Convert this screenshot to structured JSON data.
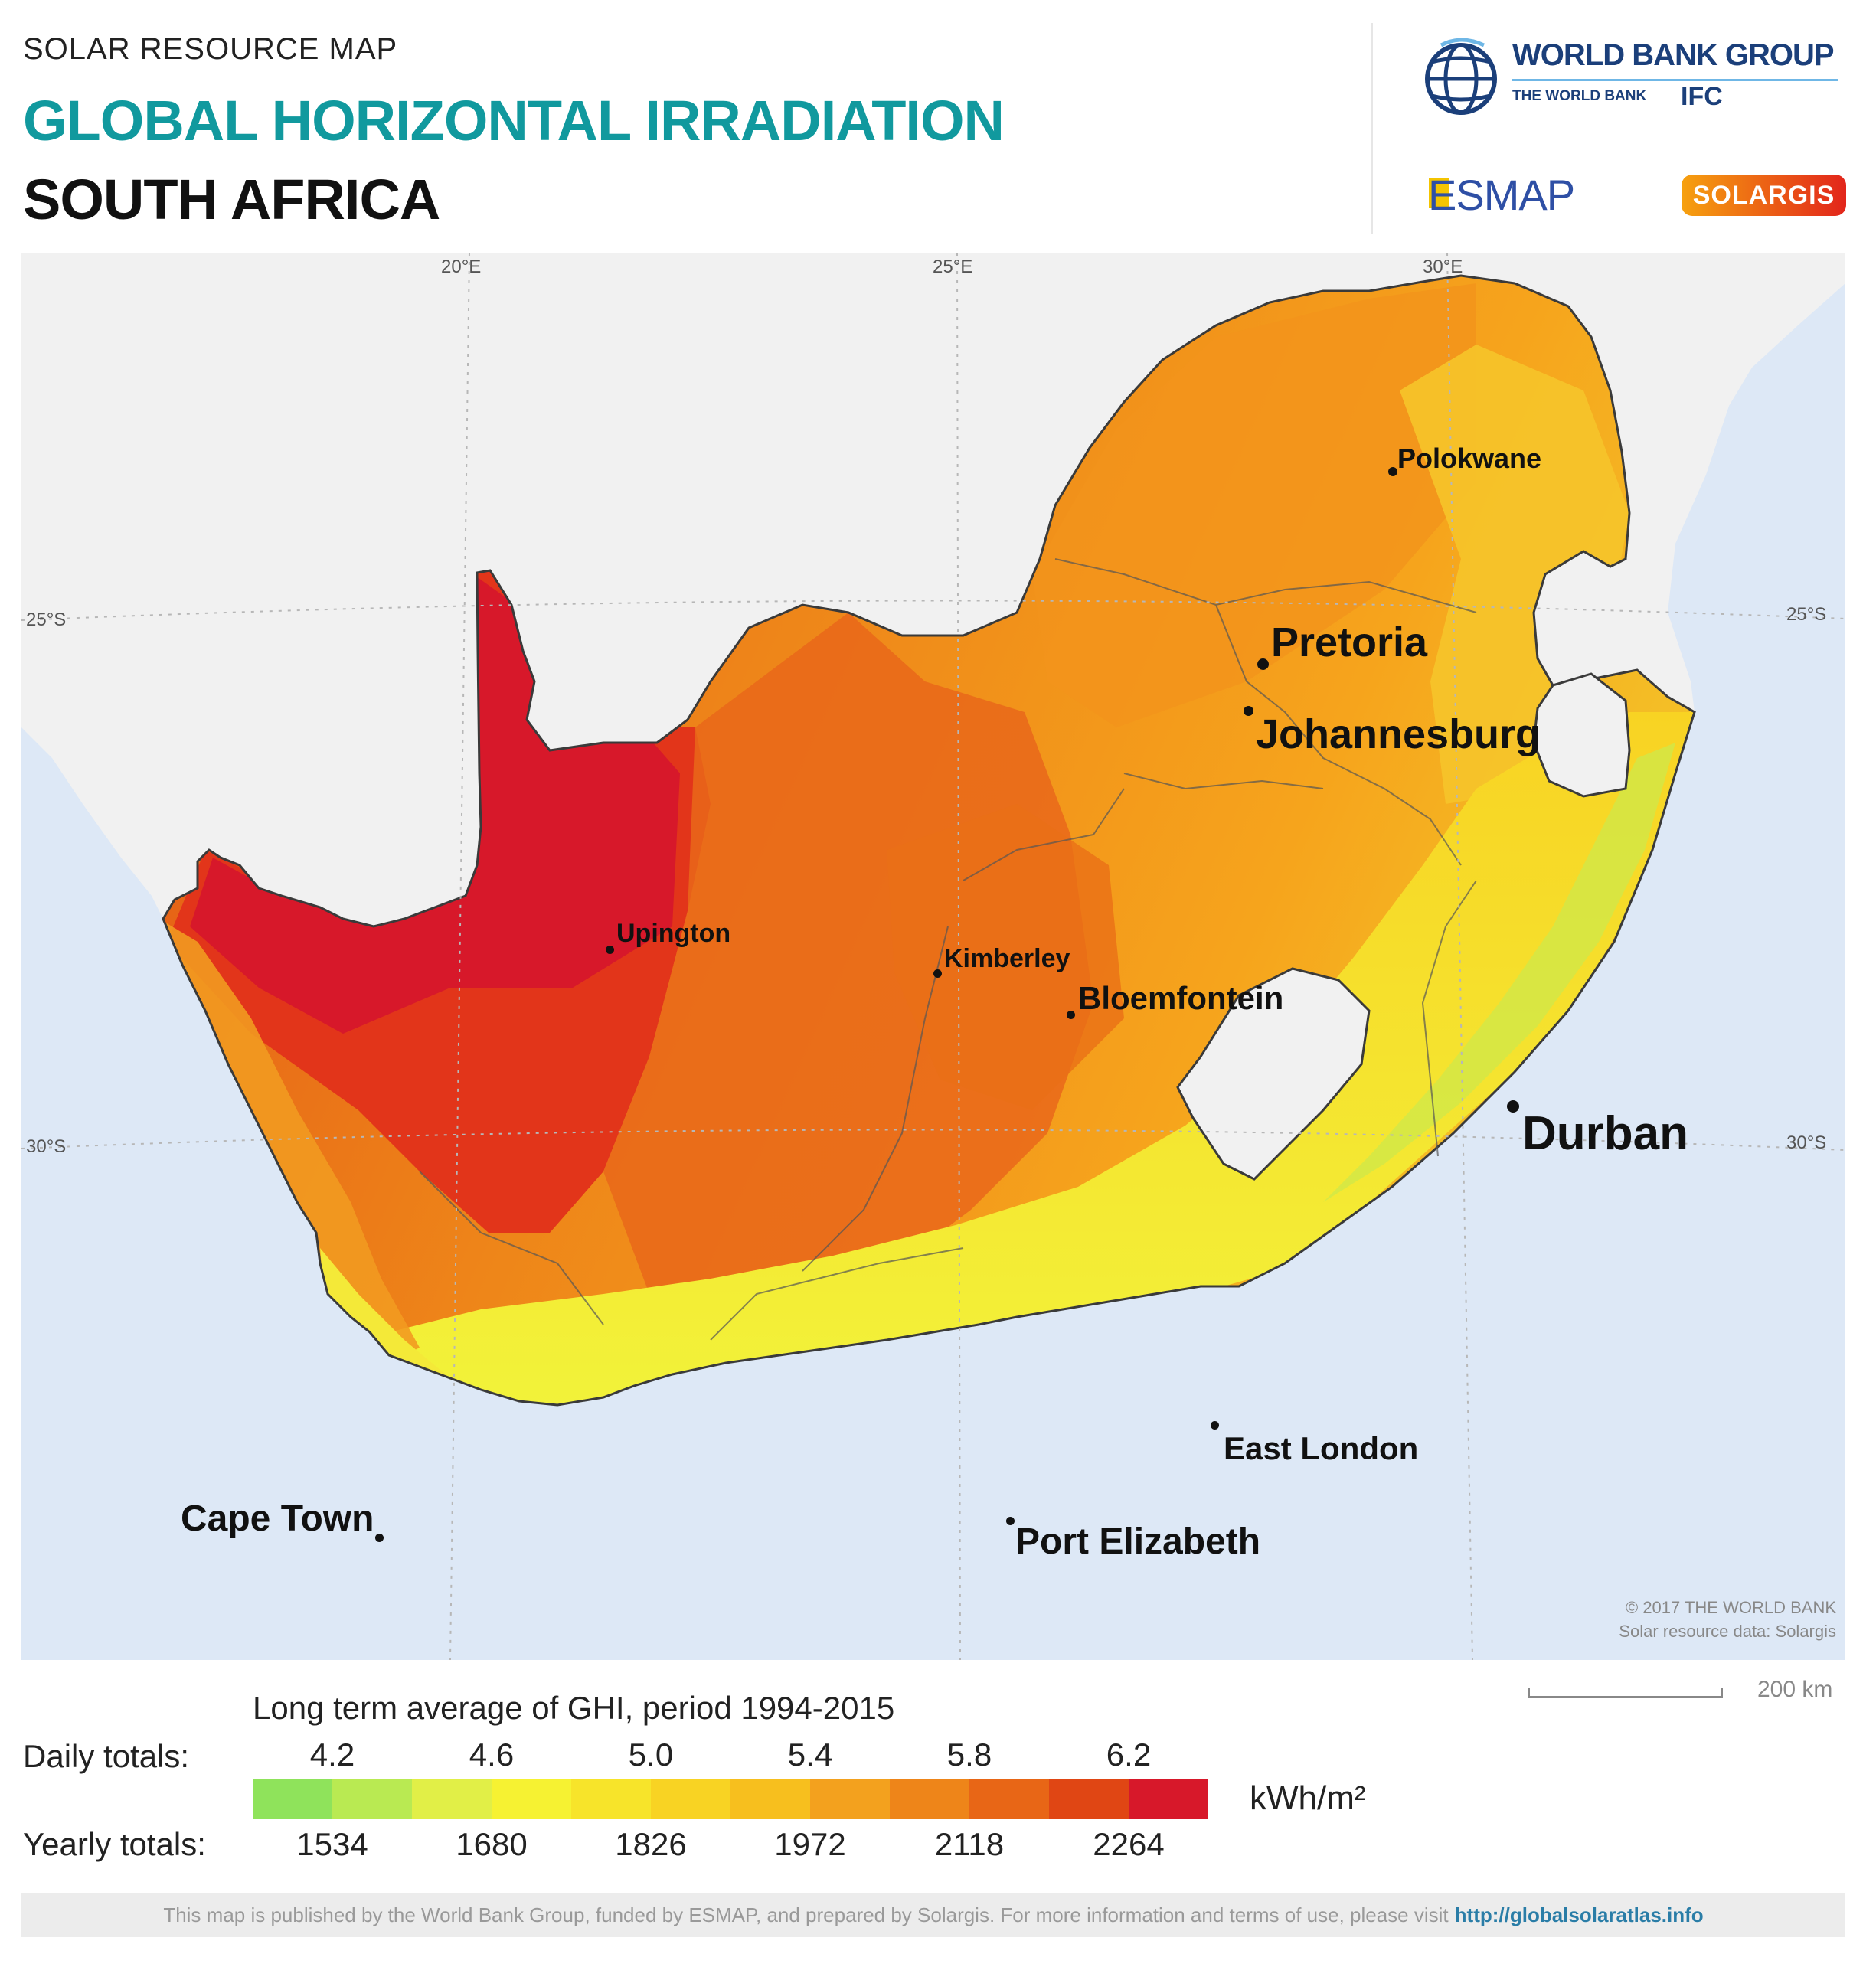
{
  "header": {
    "kicker": "SOLAR RESOURCE MAP",
    "title": "GLOBAL HORIZONTAL IRRADIATION",
    "country": "SOUTH AFRICA"
  },
  "logos": {
    "world_bank": "WORLD BANK GROUP",
    "world_bank_sub": "THE WORLD BANK",
    "ifc": "IFC",
    "esmap": "ESMAP",
    "solargis": "SOLARGIS"
  },
  "map": {
    "graticule": {
      "lon_labels": [
        "20°E",
        "25°E",
        "30°E"
      ],
      "lat_labels": [
        "25°S",
        "30°S"
      ]
    },
    "cities": [
      {
        "name": "Polokwane",
        "rank": "minor"
      },
      {
        "name": "Pretoria",
        "rank": "major"
      },
      {
        "name": "Johannesburg",
        "rank": "major"
      },
      {
        "name": "Upington",
        "rank": "minor"
      },
      {
        "name": "Kimberley",
        "rank": "minor"
      },
      {
        "name": "Bloemfontein",
        "rank": "mid"
      },
      {
        "name": "Durban",
        "rank": "major"
      },
      {
        "name": "East London",
        "rank": "mid"
      },
      {
        "name": "Port Elizabeth",
        "rank": "mid"
      },
      {
        "name": "Cape Town",
        "rank": "mid"
      }
    ],
    "copyright_line1": "© 2017 THE WORLD BANK",
    "copyright_line2": "Solar resource data: Solargis",
    "scale_label": "200 km",
    "colors": {
      "ocean": "#dde8f6",
      "neighbour_land": "#f1f1f1",
      "highest": "#d7182a",
      "lowest": "#a8e060"
    }
  },
  "legend": {
    "title": "Long term average of GHI, period 1994-2015",
    "daily_label": "Daily totals:",
    "yearly_label": "Yearly totals:",
    "unit": "kWh/m²",
    "daily_ticks": [
      "4.2",
      "4.6",
      "5.0",
      "5.4",
      "5.8",
      "6.2"
    ],
    "yearly_ticks": [
      "1534",
      "1680",
      "1826",
      "1972",
      "2118",
      "2264"
    ],
    "colors": [
      "#8fe35b",
      "#b9ea52",
      "#e1ef47",
      "#f6f232",
      "#f7e42a",
      "#f8d323",
      "#f7bf1e",
      "#f3a11e",
      "#ee8519",
      "#e86616",
      "#e04614",
      "#d7182a"
    ]
  },
  "footer": {
    "text": "This map is published by the World Bank Group, funded by ESMAP, and prepared by Solargis. For more information and terms of use, please visit",
    "link": "http://globalsolaratlas.info"
  }
}
